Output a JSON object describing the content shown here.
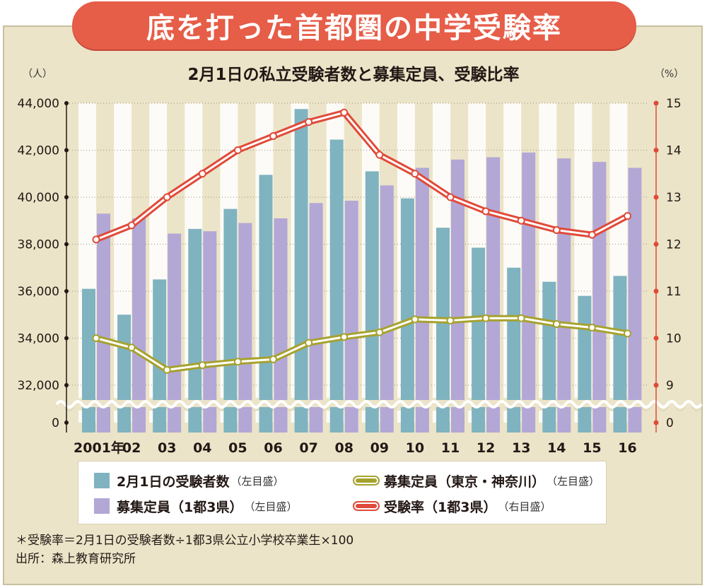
{
  "banner_title": "底を打った首都圏の中学受験率",
  "chart_data": {
    "type": "bar",
    "title": "2月1日の私立受験者数と募集定員、受験比率",
    "left_unit": "（人）",
    "right_unit": "（%）",
    "x_labels": [
      "2001年",
      "02",
      "03",
      "04",
      "05",
      "06",
      "07",
      "08",
      "09",
      "10",
      "11",
      "12",
      "13",
      "14",
      "15",
      "16"
    ],
    "y_left_ticks": [
      "0",
      "32,000",
      "34,000",
      "36,000",
      "38,000",
      "40,000",
      "42,000",
      "44,000"
    ],
    "y_right_ticks": [
      "0",
      "9",
      "10",
      "11",
      "12",
      "13",
      "14",
      "15"
    ],
    "ylim_left": [
      30800,
      44000
    ],
    "ylim_right": [
      8.4,
      15
    ],
    "axis_break": true,
    "series": [
      {
        "name": "2月1日の受験者数",
        "axis": "left",
        "kind": "bar",
        "color": "#7fb3bf",
        "values": [
          36100,
          35000,
          36500,
          38650,
          39500,
          40950,
          43750,
          42450,
          41100,
          39950,
          38700,
          37850,
          37000,
          36400,
          35800,
          36650
        ]
      },
      {
        "name": "募集定員（1都3県）",
        "axis": "left",
        "kind": "bar",
        "color": "#b3a7d6",
        "values": [
          39300,
          39100,
          38450,
          38550,
          38900,
          39100,
          39750,
          39850,
          40500,
          41250,
          41600,
          41700,
          41900,
          41650,
          41500,
          41250
        ]
      },
      {
        "name": "募集定員（東京・神奈川）",
        "axis": "left",
        "kind": "line",
        "color": "#a6a22e",
        "values": [
          34000,
          33600,
          32650,
          32850,
          33000,
          33100,
          33800,
          34050,
          34250,
          34800,
          34750,
          34850,
          34850,
          34600,
          34450,
          34200
        ]
      },
      {
        "name": "受験率（1都3県）",
        "axis": "right",
        "kind": "line",
        "color": "#e04a39",
        "values": [
          12.1,
          12.4,
          13.0,
          13.5,
          14.0,
          14.3,
          14.6,
          14.8,
          13.9,
          13.5,
          13.0,
          12.7,
          12.5,
          12.3,
          12.2,
          12.6
        ]
      }
    ]
  },
  "legend": {
    "items": [
      {
        "label": "2月1日の受験者数",
        "axis": "（左目盛）",
        "color": "#7fb3bf",
        "kind": "box"
      },
      {
        "label": "募集定員（東京・神奈川）",
        "axis": "（左目盛）",
        "color": "#a6a22e",
        "kind": "line"
      },
      {
        "label": "募集定員（1都3県）",
        "axis": "（左目盛）",
        "color": "#b3a7d6",
        "kind": "box"
      },
      {
        "label": "受験率（1都3県）",
        "axis": "（右目盛）",
        "color": "#e04a39",
        "kind": "line"
      }
    ]
  },
  "notes": {
    "formula": "＊受験率＝2月1日の受験者数÷1都3県公立小学校卒業生×100",
    "source": "出所：森上教育研究所"
  }
}
